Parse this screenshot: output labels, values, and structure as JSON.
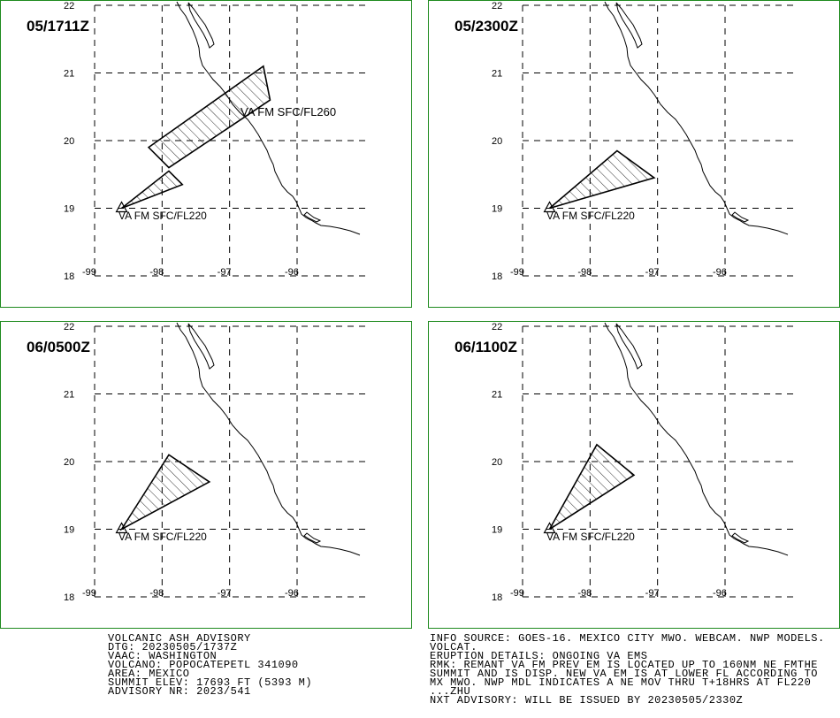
{
  "map": {
    "border_color": "#1e8a1e",
    "grid": true,
    "lat_labels": [
      "22",
      "21",
      "20",
      "19",
      "18"
    ],
    "lon_labels": [
      "-99",
      "-98",
      "-97",
      "-96"
    ]
  },
  "panels": [
    {
      "time_label": "05/1711Z",
      "areas": [
        {
          "label": "VA FM SFC/FL260",
          "points": [
            [
              -98.2,
              19.9
            ],
            [
              -96.5,
              21.1
            ],
            [
              -96.4,
              20.6
            ],
            [
              -97.9,
              19.6
            ]
          ]
        },
        {
          "label": "VA FM SFC/FL220",
          "points": [
            [
              -98.6,
              19.0
            ],
            [
              -97.9,
              19.55
            ],
            [
              -97.7,
              19.35
            ]
          ]
        }
      ]
    },
    {
      "time_label": "05/2300Z",
      "areas": [
        {
          "label": "VA FM SFC/FL220",
          "points": [
            [
              -98.6,
              19.0
            ],
            [
              -97.6,
              19.85
            ],
            [
              -97.05,
              19.45
            ]
          ]
        }
      ]
    },
    {
      "time_label": "06/0500Z",
      "areas": [
        {
          "label": "VA FM SFC/FL220",
          "points": [
            [
              -98.6,
              19.0
            ],
            [
              -97.9,
              20.1
            ],
            [
              -97.3,
              19.7
            ]
          ]
        }
      ]
    },
    {
      "time_label": "06/1100Z",
      "areas": [
        {
          "label": "VA FM SFC/FL220",
          "points": [
            [
              -98.6,
              19.0
            ],
            [
              -97.9,
              20.25
            ],
            [
              -97.35,
              19.8
            ]
          ]
        }
      ]
    }
  ],
  "advisory_left": [
    "VOLCANIC ASH ADVISORY",
    "DTG: 20230505/1737Z",
    "VAAC: WASHINGTON",
    "VOLCANO: POPOCATEPETL 341090",
    "AREA: MEXICO",
    "SUMMIT ELEV: 17693 FT (5393 M)",
    "ADVISORY NR: 2023/541"
  ],
  "advisory_right": [
    "INFO SOURCE: GOES-16. MEXICO CITY MWO. WEBCAM. NWP MODELS.",
    "VOLCAT.",
    "ERUPTION DETAILS: ONGOING VA EMS",
    "RMK: REMANT VA FM PREV EM IS LOCATED UP TO 160NM NE FMTHE",
    "SUMMIT AND IS DISP. NEW VA EM IS AT LOWER FL ACCORDING TO",
    "MX MWO. NWP MDL INDICATES A NE MOV THRU T+18HRS AT FL220",
    "...ZHU",
    "NXT ADVISORY: WILL BE ISSUED BY 20230505/2330Z"
  ]
}
